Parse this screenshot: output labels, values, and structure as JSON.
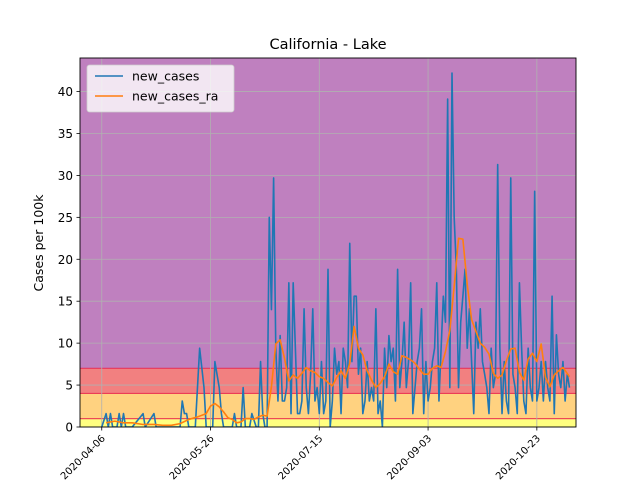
{
  "chart_data": {
    "type": "line",
    "title": "California - Lake",
    "xlabel": "",
    "ylabel": "Cases per 100k",
    "xlim": [
      "2020-03-27",
      "2020-11-10"
    ],
    "ylim": [
      0,
      44
    ],
    "yticks": [
      0,
      5,
      10,
      15,
      20,
      25,
      30,
      35,
      40
    ],
    "xticks": [
      "2020-04-06",
      "2020-05-26",
      "2020-07-15",
      "2020-09-03",
      "2020-10-23"
    ],
    "grid": true,
    "legend_position": "top-left",
    "bands": [
      {
        "from": 0,
        "to": 1,
        "color": "#ffff80"
      },
      {
        "from": 1,
        "to": 4,
        "color": "#ffd280"
      },
      {
        "from": 4,
        "to": 7,
        "color": "#f28080"
      },
      {
        "from": 7,
        "to": 44,
        "color": "#bf80bf"
      }
    ],
    "series": [
      {
        "name": "new_cases",
        "color": "#1f77b4",
        "x": [
          "2020-04-06",
          "2020-04-08",
          "2020-04-09",
          "2020-04-10",
          "2020-04-11",
          "2020-04-12",
          "2020-04-13",
          "2020-04-14",
          "2020-04-15",
          "2020-04-16",
          "2020-04-17",
          "2020-04-20",
          "2020-04-25",
          "2020-04-26",
          "2020-04-30",
          "2020-05-01",
          "2020-05-02",
          "2020-05-08",
          "2020-05-12",
          "2020-05-13",
          "2020-05-14",
          "2020-05-15",
          "2020-05-16",
          "2020-05-19",
          "2020-05-21",
          "2020-05-23",
          "2020-05-24",
          "2020-05-25",
          "2020-05-26",
          "2020-05-27",
          "2020-05-28",
          "2020-05-30",
          "2020-05-31",
          "2020-06-01",
          "2020-06-02",
          "2020-06-03",
          "2020-06-05",
          "2020-06-06",
          "2020-06-07",
          "2020-06-09",
          "2020-06-10",
          "2020-06-11",
          "2020-06-12",
          "2020-06-13",
          "2020-06-14",
          "2020-06-16",
          "2020-06-17",
          "2020-06-18",
          "2020-06-19",
          "2020-06-20",
          "2020-06-21",
          "2020-06-22",
          "2020-06-23",
          "2020-06-24",
          "2020-06-25",
          "2020-06-26",
          "2020-06-27",
          "2020-06-28",
          "2020-06-29",
          "2020-06-30",
          "2020-07-01",
          "2020-07-02",
          "2020-07-03",
          "2020-07-04",
          "2020-07-05",
          "2020-07-06",
          "2020-07-07",
          "2020-07-08",
          "2020-07-09",
          "2020-07-10",
          "2020-07-11",
          "2020-07-12",
          "2020-07-13",
          "2020-07-14",
          "2020-07-15",
          "2020-07-16",
          "2020-07-17",
          "2020-07-18",
          "2020-07-19",
          "2020-07-20",
          "2020-07-21",
          "2020-07-22",
          "2020-07-23",
          "2020-07-24",
          "2020-07-25",
          "2020-07-26",
          "2020-07-27",
          "2020-07-28",
          "2020-07-29",
          "2020-07-30",
          "2020-07-31",
          "2020-08-01",
          "2020-08-02",
          "2020-08-03",
          "2020-08-04",
          "2020-08-05",
          "2020-08-06",
          "2020-08-07",
          "2020-08-08",
          "2020-08-09",
          "2020-08-10",
          "2020-08-11",
          "2020-08-12",
          "2020-08-13",
          "2020-08-14",
          "2020-08-15",
          "2020-08-16",
          "2020-08-17",
          "2020-08-18",
          "2020-08-19",
          "2020-08-20",
          "2020-08-21",
          "2020-08-22",
          "2020-08-23",
          "2020-08-24",
          "2020-08-25",
          "2020-08-26",
          "2020-08-27",
          "2020-08-28",
          "2020-08-29",
          "2020-08-30",
          "2020-08-31",
          "2020-09-01",
          "2020-09-02",
          "2020-09-03",
          "2020-09-04",
          "2020-09-05",
          "2020-09-06",
          "2020-09-07",
          "2020-09-08",
          "2020-09-09",
          "2020-09-10",
          "2020-09-11",
          "2020-09-12",
          "2020-09-13",
          "2020-09-14",
          "2020-09-15",
          "2020-09-16",
          "2020-09-17",
          "2020-09-18",
          "2020-09-19",
          "2020-09-20",
          "2020-09-21",
          "2020-09-22",
          "2020-09-23",
          "2020-09-24",
          "2020-09-25",
          "2020-09-26",
          "2020-09-27",
          "2020-09-28",
          "2020-09-29",
          "2020-09-30",
          "2020-10-01",
          "2020-10-02",
          "2020-10-03",
          "2020-10-04",
          "2020-10-05",
          "2020-10-06",
          "2020-10-07",
          "2020-10-08",
          "2020-10-09",
          "2020-10-10",
          "2020-10-11",
          "2020-10-12",
          "2020-10-13",
          "2020-10-14",
          "2020-10-15",
          "2020-10-16",
          "2020-10-17",
          "2020-10-18",
          "2020-10-19",
          "2020-10-20",
          "2020-10-21",
          "2020-10-22",
          "2020-10-23",
          "2020-10-24",
          "2020-10-25",
          "2020-10-26",
          "2020-10-27",
          "2020-10-28",
          "2020-10-29",
          "2020-10-30",
          "2020-10-31",
          "2020-11-01",
          "2020-11-02",
          "2020-11-03",
          "2020-11-04",
          "2020-11-05",
          "2020-11-06",
          "2020-11-07"
        ],
        "values": [
          0,
          1.6,
          0,
          1.6,
          0,
          0,
          0,
          1.6,
          0,
          1.6,
          0,
          0,
          1.6,
          0,
          1.6,
          0,
          0,
          0,
          0,
          3.1,
          1.6,
          1.6,
          0,
          0,
          9.4,
          4.7,
          0,
          0,
          0,
          0,
          7.8,
          4.7,
          1.6,
          0,
          0,
          0,
          0,
          1.6,
          0,
          0,
          4.7,
          0,
          0,
          0,
          1.6,
          0,
          0,
          7.8,
          1.6,
          0,
          0,
          25,
          14,
          29.7,
          9.4,
          3.1,
          10.9,
          3.1,
          3.1,
          4.7,
          17.2,
          1.6,
          17.2,
          9.4,
          1.6,
          1.6,
          3.1,
          14.1,
          4.7,
          1.6,
          6.3,
          14.1,
          3.1,
          4.7,
          1.6,
          7.8,
          1.6,
          3.1,
          18.8,
          0,
          3.1,
          9.4,
          6.3,
          7.8,
          1.6,
          9.4,
          7.8,
          4.7,
          21.9,
          7.8,
          15.6,
          15.6,
          6.3,
          9.4,
          1.6,
          3.1,
          7.8,
          3.1,
          4.7,
          3.1,
          14.1,
          1.6,
          3.1,
          0,
          9.4,
          4.7,
          10.9,
          7.8,
          9.4,
          3.1,
          18.8,
          4.7,
          7.8,
          12.5,
          4.7,
          7.8,
          17.2,
          1.6,
          4.7,
          7.8,
          9.4,
          14.1,
          1.6,
          7.8,
          3.1,
          4.7,
          7.8,
          9.4,
          17.2,
          3.1,
          9.4,
          15.6,
          12.5,
          39.1,
          4.7,
          42.2,
          25,
          18.8,
          4.7,
          12.5,
          15.6,
          18.8,
          9.4,
          14.1,
          7.8,
          1.6,
          12.5,
          9.4,
          14.1,
          7.8,
          6.3,
          4.7,
          1.6,
          9.4,
          4.7,
          6.3,
          31.3,
          9.4,
          1.6,
          7.8,
          3.1,
          1.6,
          29.7,
          6.3,
          4.7,
          1.6,
          17.2,
          9.4,
          3.1,
          1.6,
          9.4,
          4.7,
          3.1,
          28.1,
          3.1,
          4.7,
          7.8,
          3.1,
          7.8,
          4.7,
          3.1,
          15.6,
          1.6,
          11,
          6.3,
          4.7,
          7.8,
          3.1,
          6.3,
          4.7
        ]
      },
      {
        "name": "new_cases_ra",
        "color": "#ff7f0e",
        "x": [
          "2020-04-08",
          "2020-04-12",
          "2020-04-16",
          "2020-04-20",
          "2020-04-25",
          "2020-04-30",
          "2020-05-04",
          "2020-05-08",
          "2020-05-12",
          "2020-05-16",
          "2020-05-20",
          "2020-05-24",
          "2020-05-26",
          "2020-05-28",
          "2020-05-30",
          "2020-06-01",
          "2020-06-03",
          "2020-06-05",
          "2020-06-07",
          "2020-06-09",
          "2020-06-11",
          "2020-06-13",
          "2020-06-15",
          "2020-06-17",
          "2020-06-19",
          "2020-06-21",
          "2020-06-23",
          "2020-06-25",
          "2020-06-27",
          "2020-06-29",
          "2020-07-01",
          "2020-07-03",
          "2020-07-05",
          "2020-07-07",
          "2020-07-09",
          "2020-07-11",
          "2020-07-13",
          "2020-07-15",
          "2020-07-17",
          "2020-07-19",
          "2020-07-21",
          "2020-07-23",
          "2020-07-25",
          "2020-07-27",
          "2020-07-29",
          "2020-07-31",
          "2020-08-02",
          "2020-08-04",
          "2020-08-06",
          "2020-08-08",
          "2020-08-10",
          "2020-08-12",
          "2020-08-14",
          "2020-08-16",
          "2020-08-18",
          "2020-08-20",
          "2020-08-22",
          "2020-08-24",
          "2020-08-26",
          "2020-08-28",
          "2020-08-30",
          "2020-09-01",
          "2020-09-03",
          "2020-09-05",
          "2020-09-07",
          "2020-09-09",
          "2020-09-11",
          "2020-09-13",
          "2020-09-15",
          "2020-09-17",
          "2020-09-19",
          "2020-09-21",
          "2020-09-23",
          "2020-09-25",
          "2020-09-27",
          "2020-09-29",
          "2020-10-01",
          "2020-10-03",
          "2020-10-05",
          "2020-10-07",
          "2020-10-09",
          "2020-10-11",
          "2020-10-13",
          "2020-10-15",
          "2020-10-17",
          "2020-10-19",
          "2020-10-21",
          "2020-10-23",
          "2020-10-25",
          "2020-10-27",
          "2020-10-29",
          "2020-10-31",
          "2020-11-02",
          "2020-11-04",
          "2020-11-07"
        ],
        "values": [
          0.5,
          0.7,
          0.5,
          0.5,
          0.3,
          0.3,
          0.2,
          0.2,
          0.4,
          0.9,
          1.2,
          1.6,
          2.5,
          2.8,
          2.4,
          1.8,
          1.1,
          0.9,
          0.5,
          0.6,
          1,
          1,
          0.9,
          1.2,
          1.4,
          1.3,
          4.8,
          9.9,
          10.4,
          8.2,
          5.5,
          6.2,
          5.8,
          6.4,
          7.1,
          6.7,
          6.5,
          6,
          5.8,
          5.3,
          4.9,
          5.9,
          6.7,
          5.8,
          7.6,
          12,
          9.4,
          8.6,
          6.7,
          5.6,
          4.7,
          5.2,
          6,
          7.5,
          6.6,
          6.3,
          8.5,
          8.3,
          8,
          7.6,
          6.9,
          6.3,
          6.3,
          7,
          7.3,
          7.1,
          9,
          11.5,
          16.8,
          22.5,
          22.4,
          17,
          12.8,
          11.4,
          10,
          9.5,
          8.7,
          6.4,
          5.8,
          6.2,
          7.9,
          9.3,
          9.4,
          6.5,
          5.6,
          8.1,
          8.8,
          7.8,
          9.9,
          5.9,
          4.8,
          6.2,
          6.7,
          7.1,
          6
        ]
      }
    ]
  }
}
